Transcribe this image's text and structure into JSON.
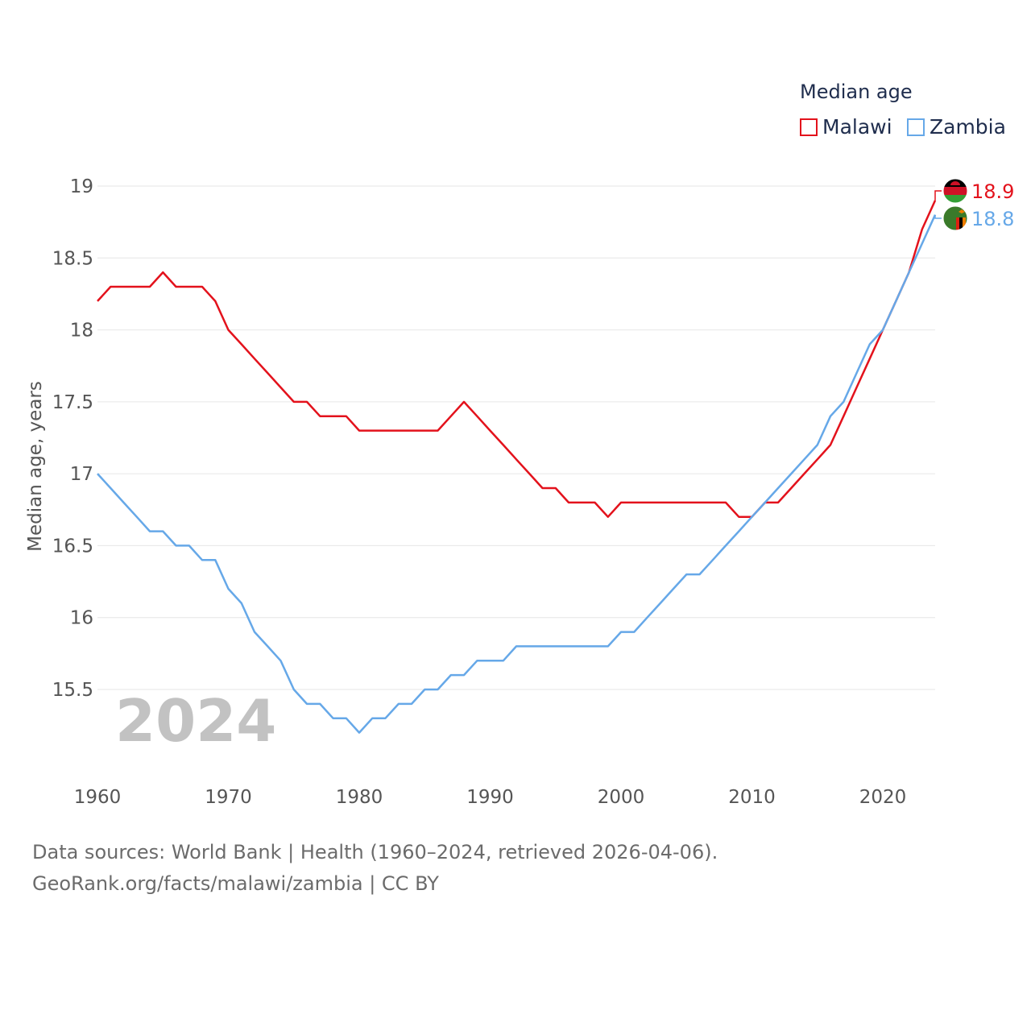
{
  "legend": {
    "title": "Median age",
    "items": [
      {
        "name": "Malawi",
        "color": "#e3121c"
      },
      {
        "name": "Zambia",
        "color": "#66a8e8"
      }
    ]
  },
  "footer": {
    "line1": "Data sources: World Bank | Health (1960–2024, retrieved 2026-04-06).",
    "line2": "GeoRank.org/facts/malawi/zambia | CC BY"
  },
  "chart_data": {
    "type": "line",
    "title": "Median age",
    "xlabel": "",
    "ylabel": "Median age, years",
    "year_overlay": "2024",
    "xlim": [
      1960,
      2024
    ],
    "ylim": [
      15.0,
      19.0
    ],
    "x_ticks": [
      1960,
      1970,
      1980,
      1990,
      2000,
      2010,
      2020
    ],
    "x_tick_labels": [
      "1960",
      "1970",
      "1980",
      "1990",
      "2000",
      "2010",
      "2020"
    ],
    "y_ticks": [
      15.5,
      16,
      16.5,
      17,
      17.5,
      18,
      18.5,
      19
    ],
    "y_tick_labels": [
      "15.5",
      "16",
      "16.5",
      "17",
      "17.5",
      "18",
      "18.5",
      "19"
    ],
    "grid": true,
    "legend_position": "top-right",
    "x": [
      1960,
      1961,
      1962,
      1963,
      1964,
      1965,
      1966,
      1967,
      1968,
      1969,
      1970,
      1971,
      1972,
      1973,
      1974,
      1975,
      1976,
      1977,
      1978,
      1979,
      1980,
      1981,
      1982,
      1983,
      1984,
      1985,
      1986,
      1987,
      1988,
      1989,
      1990,
      1991,
      1992,
      1993,
      1994,
      1995,
      1996,
      1997,
      1998,
      1999,
      2000,
      2001,
      2002,
      2003,
      2004,
      2005,
      2006,
      2007,
      2008,
      2009,
      2010,
      2011,
      2012,
      2013,
      2014,
      2015,
      2016,
      2017,
      2018,
      2019,
      2020,
      2021,
      2022,
      2023,
      2024
    ],
    "series": [
      {
        "name": "Malawi",
        "color": "#e3121c",
        "end_label": "18.9",
        "values": [
          18.2,
          18.3,
          18.3,
          18.3,
          18.3,
          18.4,
          18.3,
          18.3,
          18.3,
          18.2,
          18.0,
          17.9,
          17.8,
          17.7,
          17.6,
          17.5,
          17.5,
          17.4,
          17.4,
          17.4,
          17.3,
          17.3,
          17.3,
          17.3,
          17.3,
          17.3,
          17.3,
          17.4,
          17.5,
          17.4,
          17.3,
          17.2,
          17.1,
          17.0,
          16.9,
          16.9,
          16.8,
          16.8,
          16.8,
          16.7,
          16.8,
          16.8,
          16.8,
          16.8,
          16.8,
          16.8,
          16.8,
          16.8,
          16.8,
          16.7,
          16.7,
          16.8,
          16.8,
          16.9,
          17.0,
          17.1,
          17.2,
          17.4,
          17.6,
          17.8,
          18.0,
          18.2,
          18.4,
          18.7,
          18.9
        ]
      },
      {
        "name": "Zambia",
        "color": "#66a8e8",
        "end_label": "18.8",
        "values": [
          17.0,
          16.9,
          16.8,
          16.7,
          16.6,
          16.6,
          16.5,
          16.5,
          16.4,
          16.4,
          16.2,
          16.1,
          15.9,
          15.8,
          15.7,
          15.5,
          15.4,
          15.4,
          15.3,
          15.3,
          15.2,
          15.3,
          15.3,
          15.4,
          15.4,
          15.5,
          15.5,
          15.6,
          15.6,
          15.7,
          15.7,
          15.7,
          15.8,
          15.8,
          15.8,
          15.8,
          15.8,
          15.8,
          15.8,
          15.8,
          15.9,
          15.9,
          16.0,
          16.1,
          16.2,
          16.3,
          16.3,
          16.4,
          16.5,
          16.6,
          16.7,
          16.8,
          16.9,
          17.0,
          17.1,
          17.2,
          17.4,
          17.5,
          17.7,
          17.9,
          18.0,
          18.2,
          18.4,
          18.6,
          18.8
        ]
      }
    ]
  }
}
